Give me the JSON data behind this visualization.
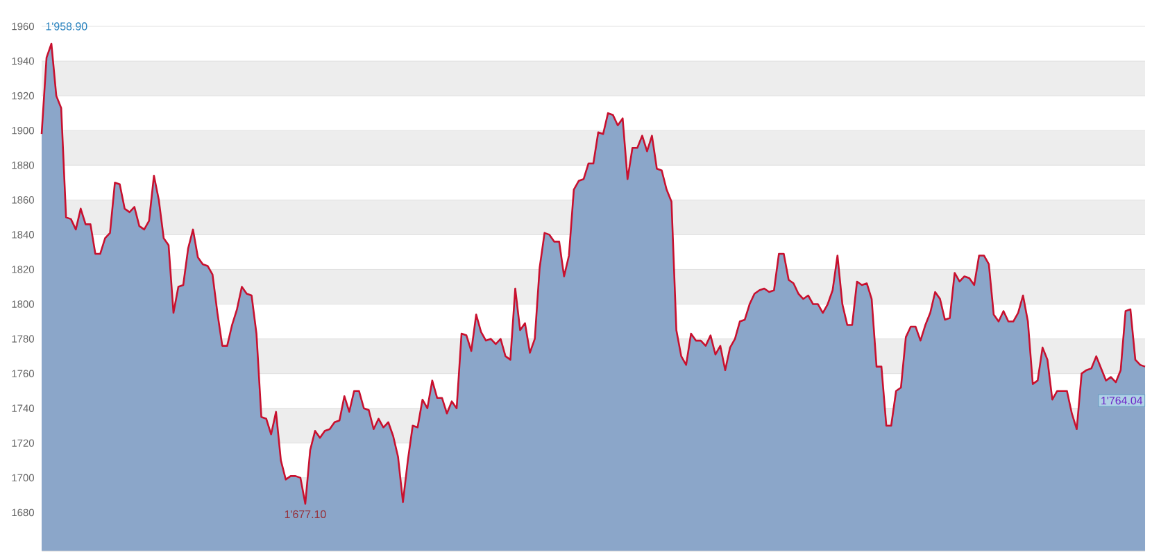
{
  "chart_data": {
    "type": "area",
    "categories": [
      null,
      null,
      null,
      null,
      null,
      null,
      null,
      null,
      null,
      null,
      null,
      null,
      null,
      null,
      null,
      null,
      null,
      null,
      null,
      null,
      null,
      null,
      null,
      null,
      null,
      null,
      null,
      null,
      null,
      null,
      null,
      null,
      null,
      null,
      null,
      null,
      null,
      null,
      null,
      null,
      null,
      null,
      null,
      null,
      null,
      null,
      null,
      null,
      null,
      null,
      null,
      null,
      null,
      null,
      null,
      null,
      null,
      null,
      null,
      null,
      null,
      null,
      null,
      null,
      null,
      null,
      null,
      null,
      null,
      null,
      null,
      null,
      null,
      null,
      null,
      null,
      null,
      null,
      null,
      null,
      null,
      null,
      null,
      null,
      null,
      null,
      null,
      null,
      null,
      null,
      null,
      null,
      null,
      null,
      null,
      null,
      null,
      null,
      null,
      null,
      null,
      null,
      null,
      null,
      null,
      null,
      null,
      null,
      null,
      null,
      null,
      null,
      null,
      null,
      null,
      null,
      null,
      null,
      null,
      null,
      null,
      null,
      null,
      null,
      null,
      null,
      null,
      null,
      null,
      null,
      null,
      null,
      null,
      null,
      null,
      null,
      null,
      null,
      null,
      null,
      null,
      null,
      null,
      null,
      null,
      null,
      null,
      null,
      null,
      null,
      null,
      null,
      null,
      null,
      null,
      null,
      null,
      null,
      null,
      null,
      null,
      null,
      null,
      null,
      null,
      null,
      null,
      null,
      null,
      null,
      null,
      null,
      null,
      null,
      null,
      null,
      null,
      null,
      null,
      null,
      null,
      null,
      null,
      null,
      null,
      null,
      null,
      null,
      null,
      null,
      null,
      null,
      null,
      null,
      null,
      null,
      null,
      null,
      null,
      null,
      null,
      null,
      null,
      null,
      null,
      null,
      null,
      null,
      null,
      null,
      null,
      null,
      null,
      null,
      null,
      null,
      null,
      null,
      null,
      null,
      null,
      null,
      null,
      null,
      null,
      null,
      null
    ],
    "series": [
      {
        "color": "#8ba6c9",
        "values": [
          1898,
          1942,
          1950,
          1920,
          1913,
          1850,
          1849,
          1843,
          1855,
          1846,
          1846,
          1829,
          1829,
          1838,
          1841,
          1870,
          1869,
          1855,
          1853,
          1856,
          1845,
          1843,
          1848,
          1874,
          1860,
          1838,
          1834,
          1795,
          1810,
          1811,
          1832,
          1843,
          1827,
          1823,
          1822,
          1817,
          1795,
          1776,
          1776,
          1788,
          1797,
          1810,
          1806,
          1805,
          1783,
          1735,
          1734,
          1725,
          1738,
          1710,
          1699,
          1701,
          1701,
          1700,
          1685,
          1716,
          1727,
          1723,
          1727,
          1728,
          1732,
          1733,
          1747,
          1738,
          1750,
          1750,
          1740,
          1739,
          1728,
          1734,
          1729,
          1732,
          1724,
          1712,
          1686,
          1710,
          1730,
          1729,
          1745,
          1740,
          1756,
          1746,
          1746,
          1737,
          1744,
          1740,
          1783,
          1782,
          1773,
          1794,
          1784,
          1779,
          1780,
          1777,
          1780,
          1770,
          1768,
          1809,
          1785,
          1789,
          1772,
          1780,
          1821,
          1841,
          1840,
          1836,
          1836,
          1816,
          1828,
          1866,
          1871,
          1872,
          1881,
          1881,
          1899,
          1898,
          1910,
          1909,
          1903,
          1907,
          1872,
          1890,
          1890,
          1897,
          1888,
          1897,
          1878,
          1877,
          1866,
          1859,
          1785,
          1770,
          1765,
          1783,
          1779,
          1779,
          1776,
          1782,
          1771,
          1776,
          1762,
          1775,
          1780,
          1790,
          1791,
          1800,
          1806,
          1808,
          1809,
          1807,
          1808,
          1829,
          1829,
          1814,
          1812,
          1806,
          1803,
          1805,
          1800,
          1800,
          1795,
          1800,
          1808,
          1828,
          1800,
          1788,
          1788,
          1813,
          1811,
          1812,
          1803,
          1764,
          1764,
          1730,
          1730,
          1750,
          1752,
          1781,
          1787,
          1787,
          1779,
          1788,
          1795,
          1807,
          1803,
          1791,
          1792,
          1818,
          1813,
          1816,
          1815,
          1811,
          1828,
          1828,
          1823,
          1794,
          1790,
          1796,
          1790,
          1790,
          1795,
          1805,
          1790,
          1754,
          1756,
          1775,
          1768,
          1745,
          1750,
          1750,
          1750,
          1737,
          1728,
          1760,
          1762,
          1763,
          1770,
          1763,
          1756,
          1758,
          1755,
          1762,
          1796,
          1797,
          1768,
          1765,
          1764
        ]
      },
      {
        "type": "line",
        "color": "#c8102e",
        "values": [
          1898,
          1942,
          1950,
          1920,
          1913,
          1850,
          1849,
          1843,
          1855,
          1846,
          1846,
          1829,
          1829,
          1838,
          1841,
          1870,
          1869,
          1855,
          1853,
          1856,
          1845,
          1843,
          1848,
          1874,
          1860,
          1838,
          1834,
          1795,
          1810,
          1811,
          1832,
          1843,
          1827,
          1823,
          1822,
          1817,
          1795,
          1776,
          1776,
          1788,
          1797,
          1810,
          1806,
          1805,
          1783,
          1735,
          1734,
          1725,
          1738,
          1710,
          1699,
          1701,
          1701,
          1700,
          1685,
          1716,
          1727,
          1723,
          1727,
          1728,
          1732,
          1733,
          1747,
          1738,
          1750,
          1750,
          1740,
          1739,
          1728,
          1734,
          1729,
          1732,
          1724,
          1712,
          1686,
          1710,
          1730,
          1729,
          1745,
          1740,
          1756,
          1746,
          1746,
          1737,
          1744,
          1740,
          1783,
          1782,
          1773,
          1794,
          1784,
          1779,
          1780,
          1777,
          1780,
          1770,
          1768,
          1809,
          1785,
          1789,
          1772,
          1780,
          1821,
          1841,
          1840,
          1836,
          1836,
          1816,
          1828,
          1866,
          1871,
          1872,
          1881,
          1881,
          1899,
          1898,
          1910,
          1909,
          1903,
          1907,
          1872,
          1890,
          1890,
          1897,
          1888,
          1897,
          1878,
          1877,
          1866,
          1859,
          1785,
          1770,
          1765,
          1783,
          1779,
          1779,
          1776,
          1782,
          1771,
          1776,
          1762,
          1775,
          1780,
          1790,
          1791,
          1800,
          1806,
          1808,
          1809,
          1807,
          1808,
          1829,
          1829,
          1814,
          1812,
          1806,
          1803,
          1805,
          1800,
          1800,
          1795,
          1800,
          1808,
          1828,
          1800,
          1788,
          1788,
          1813,
          1811,
          1812,
          1803,
          1764,
          1764,
          1730,
          1730,
          1750,
          1752,
          1781,
          1787,
          1787,
          1779,
          1788,
          1795,
          1807,
          1803,
          1791,
          1792,
          1818,
          1813,
          1816,
          1815,
          1811,
          1828,
          1828,
          1823,
          1794,
          1790,
          1796,
          1790,
          1790,
          1795,
          1805,
          1790,
          1754,
          1756,
          1775,
          1768,
          1745,
          1750,
          1750,
          1750,
          1737,
          1728,
          1760,
          1762,
          1763,
          1770,
          1763,
          1756,
          1758,
          1755,
          1762,
          1796,
          1797,
          1768,
          1765,
          1764
        ]
      }
    ],
    "ylim": [
      1658,
      1960
    ],
    "yticks": [
      1680,
      1700,
      1720,
      1740,
      1760,
      1780,
      1800,
      1820,
      1840,
      1860,
      1880,
      1900,
      1920,
      1940,
      1960
    ],
    "grid": "y",
    "marker": "none",
    "annotations": [
      "1'958.90",
      "1'677.10",
      {
        "text": "1'764.04",
        "y": 1764.04
      }
    ]
  }
}
